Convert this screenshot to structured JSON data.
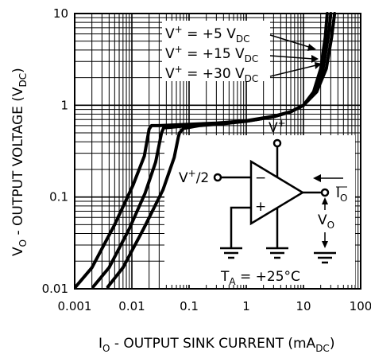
{
  "chart_data": {
    "type": "line",
    "title": "",
    "xlabel": "I",
    "xlabel_sub": "O",
    "xlabel_rest": " - OUTPUT SINK CURRENT (mA",
    "xlabel_unit_sub": "DC",
    "xlabel_close": ")",
    "ylabel": "V",
    "ylabel_sub": "O",
    "ylabel_rest": " - OUTPUT VOLTAGE (V",
    "ylabel_unit_sub": "DC",
    "ylabel_close": ")",
    "x_scale": "log",
    "y_scale": "log",
    "xlim": [
      0.001,
      100
    ],
    "ylim": [
      0.01,
      10
    ],
    "grid": true,
    "x_ticks": [
      "0.001",
      "0.01",
      "0.1",
      "1",
      "10",
      "100"
    ],
    "y_ticks": [
      "10",
      "1",
      "0.1",
      "0.01"
    ],
    "series": [
      {
        "name": "V+ = +5 VDC",
        "points": [
          [
            0.00104,
            0.0105
          ],
          [
            0.002,
            0.017
          ],
          [
            0.005,
            0.05
          ],
          [
            0.0105,
            0.135
          ],
          [
            0.0165,
            0.28
          ],
          [
            0.02,
            0.55
          ],
          [
            0.022,
            0.6
          ],
          [
            0.03,
            0.6
          ],
          [
            0.1,
            0.62
          ],
          [
            0.3,
            0.64
          ],
          [
            1,
            0.68
          ],
          [
            3,
            0.76
          ],
          [
            6,
            0.85
          ],
          [
            10,
            1.0
          ],
          [
            15,
            1.4
          ],
          [
            20,
            2.5
          ],
          [
            24,
            5.5
          ],
          [
            26,
            10
          ]
        ]
      },
      {
        "name": "V+ = +15 VDC",
        "points": [
          [
            0.0021,
            0.0105
          ],
          [
            0.004,
            0.017
          ],
          [
            0.009,
            0.045
          ],
          [
            0.017,
            0.11
          ],
          [
            0.026,
            0.24
          ],
          [
            0.033,
            0.5
          ],
          [
            0.036,
            0.57
          ],
          [
            0.04,
            0.57
          ],
          [
            0.1,
            0.6
          ],
          [
            0.3,
            0.63
          ],
          [
            1,
            0.67
          ],
          [
            3,
            0.75
          ],
          [
            6,
            0.85
          ],
          [
            10,
            1.0
          ],
          [
            16,
            1.4
          ],
          [
            22,
            2.5
          ],
          [
            27,
            5.5
          ],
          [
            30,
            10
          ]
        ]
      },
      {
        "name": "V+ = +30 VDC",
        "points": [
          [
            0.0038,
            0.0105
          ],
          [
            0.007,
            0.017
          ],
          [
            0.016,
            0.045
          ],
          [
            0.035,
            0.12
          ],
          [
            0.055,
            0.27
          ],
          [
            0.065,
            0.45
          ],
          [
            0.068,
            0.5
          ],
          [
            0.08,
            0.56
          ],
          [
            0.15,
            0.6
          ],
          [
            0.4,
            0.63
          ],
          [
            1,
            0.67
          ],
          [
            3,
            0.75
          ],
          [
            6,
            0.85
          ],
          [
            10,
            1.0
          ],
          [
            17,
            1.4
          ],
          [
            25,
            2.5
          ],
          [
            31,
            5.5
          ],
          [
            35,
            10
          ]
        ]
      }
    ],
    "annotations": {
      "v5": {
        "v": "V",
        "sup": "+",
        "rest": " = +5 V",
        "sub": "DC"
      },
      "v15": {
        "v": "V",
        "sup": "+",
        "rest": " = +15 V",
        "sub": "DC"
      },
      "v30": {
        "v": "V",
        "sup": "+",
        "rest": " = +30 V",
        "sub": "DC"
      },
      "temp": {
        "t": "T",
        "sub": "A",
        "rest": " = +25°C"
      }
    },
    "inset": {
      "vplus_label": "V",
      "vplus_sup": "+",
      "vhalf_label": "V",
      "vhalf_sup": "+",
      "vhalf_rest": "/2",
      "minus_sign": "−",
      "plus_sign": "+",
      "io_label": "I",
      "io_sub": "O",
      "vo_label": "V",
      "vo_sub": "O"
    }
  }
}
